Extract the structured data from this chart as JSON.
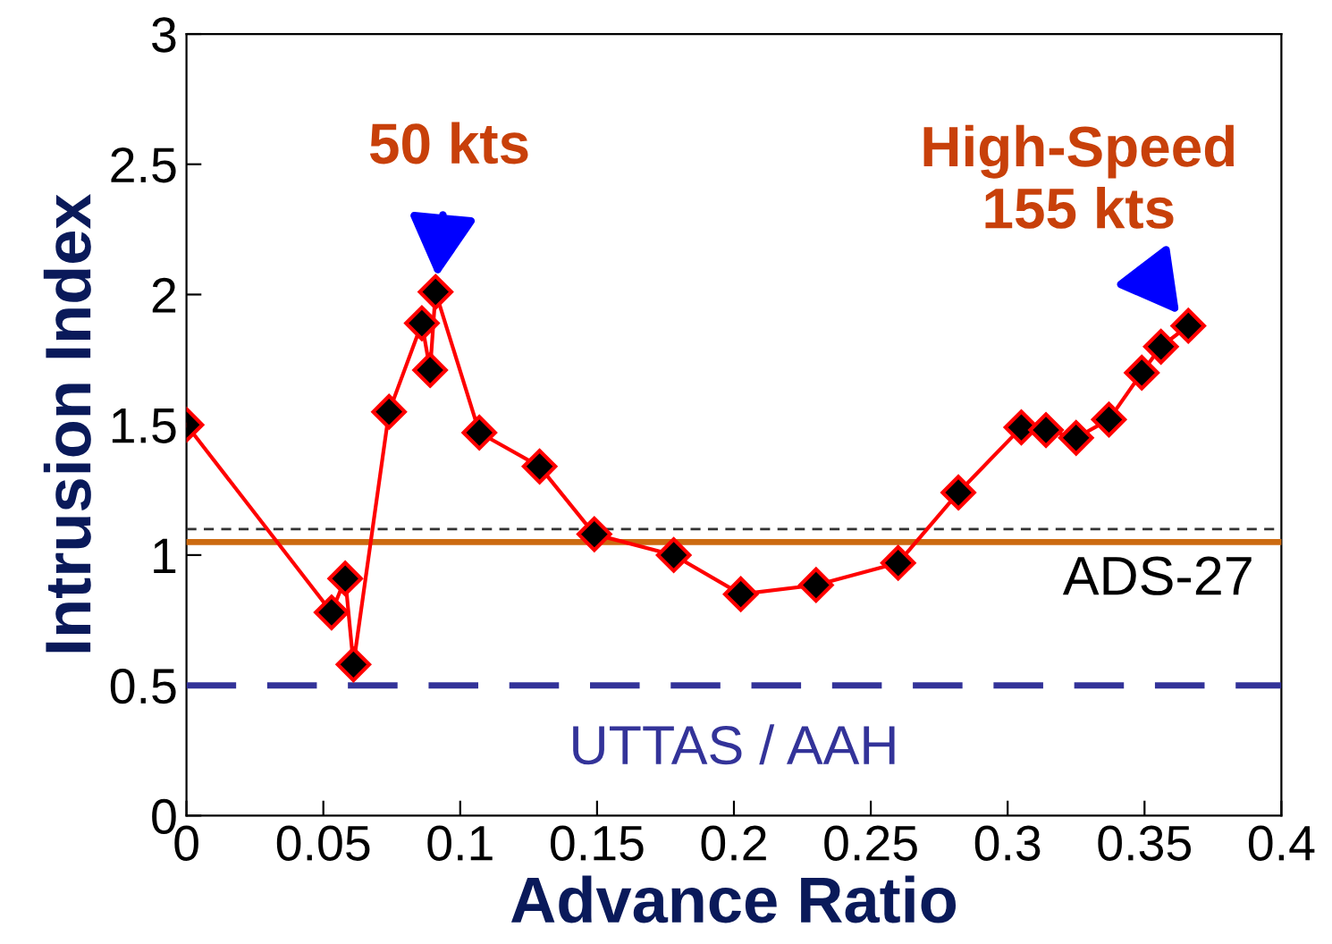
{
  "chart_data": {
    "type": "line",
    "xlabel": "Advance Ratio",
    "ylabel": "Intrusion Index",
    "x": [
      0,
      0.053,
      0.058,
      0.061,
      0.074,
      0.086,
      0.089,
      0.091,
      0.107,
      0.129,
      0.149,
      0.178,
      0.2025,
      0.23,
      0.26,
      0.282,
      0.305,
      0.314,
      0.325,
      0.337,
      0.349,
      0.356,
      0.366
    ],
    "series": [
      {
        "color": "#ff0000",
        "values": [
          1.5,
          0.78,
          0.91,
          0.58,
          1.55,
          1.89,
          1.71,
          2.01,
          1.47,
          1.34,
          1.08,
          1.0,
          0.85,
          0.885,
          0.97,
          1.24,
          1.49,
          1.48,
          1.45,
          1.52,
          1.7,
          1.8,
          1.88
        ]
      }
    ],
    "marker": "diamond",
    "line_style": "solid",
    "xlim": [
      0,
      0.4
    ],
    "xticks": [
      0,
      0.05,
      0.1,
      0.15,
      0.2,
      0.25,
      0.3,
      0.35,
      0.4
    ],
    "ylim": [
      0,
      3
    ],
    "yticks": [
      0,
      0.5,
      1,
      1.5,
      2,
      2.5,
      3
    ],
    "grid": false,
    "legend": false,
    "ref_lines": [
      {
        "axis": "y",
        "value": 1.1,
        "label": null,
        "color": "#333333",
        "line_style": "dashed"
      },
      {
        "axis": "y",
        "value": 1.05,
        "label": "ADS-27",
        "color": "#cc6a10",
        "line_style": "solid"
      },
      {
        "axis": "y",
        "value": 0.5,
        "label": "UTTAS / AAH",
        "color": "#333399",
        "line_style": "dashed"
      }
    ],
    "annotations": [
      {
        "text": "50 kts",
        "x": 0.091,
        "y": 2.01
      },
      {
        "text": "High-Speed\n155 kts",
        "x": 0.366,
        "y": 1.88
      }
    ]
  }
}
